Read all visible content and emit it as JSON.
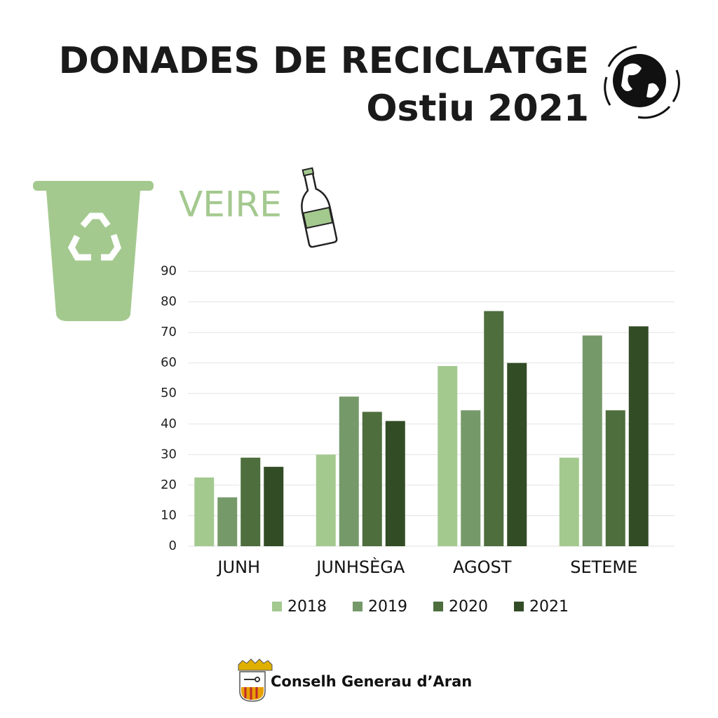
{
  "chart_data": {
    "type": "bar",
    "title": "DONADES DE RECICLATGE",
    "subtitle": "Ostiu 2021",
    "section_title": "VEIRE",
    "footer": "Conselh Generau d’Aran",
    "categories": [
      "JUNH",
      "JUNHSÈGA",
      "AGOST",
      "SETEME"
    ],
    "series": [
      {
        "name": "2018",
        "color": "#a4c98f",
        "values": [
          22.5,
          30,
          59,
          29
        ]
      },
      {
        "name": "2019",
        "color": "#76996a",
        "values": [
          16,
          49,
          44.5,
          69
        ]
      },
      {
        "name": "2020",
        "color": "#4e6e3d",
        "values": [
          29,
          44,
          77,
          44.5
        ]
      },
      {
        "name": "2021",
        "color": "#324c26",
        "values": [
          26,
          41,
          60,
          72
        ]
      }
    ],
    "ylim": [
      0,
      90
    ],
    "yticks": [
      0,
      10,
      20,
      30,
      40,
      50,
      60,
      70,
      80,
      90
    ],
    "grid": true,
    "legend": "bottom"
  }
}
